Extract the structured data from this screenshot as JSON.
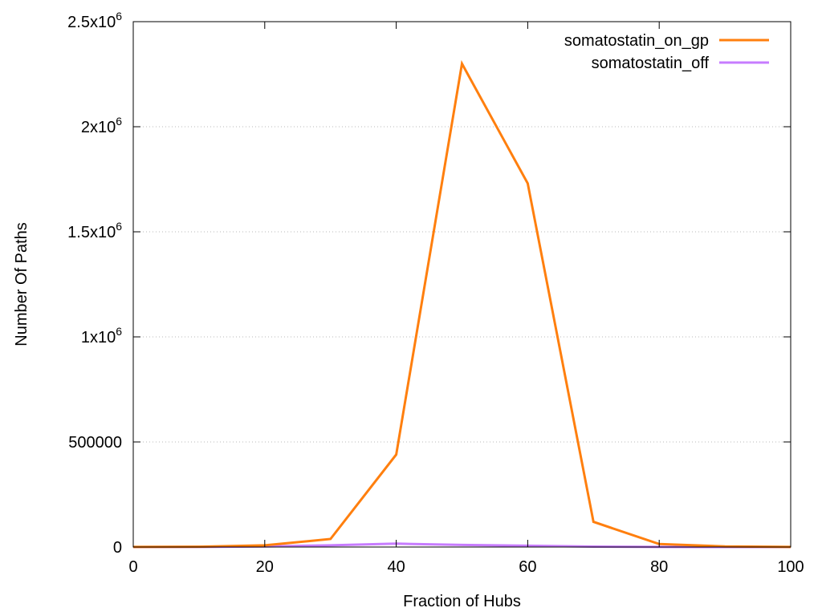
{
  "chart_data": {
    "type": "line",
    "title": "",
    "xlabel": "Fraction of Hubs",
    "ylabel": "Number Of Paths",
    "xlim": [
      0,
      100
    ],
    "ylim": [
      0,
      2500000
    ],
    "x_ticks": [
      0,
      20,
      40,
      60,
      80,
      100
    ],
    "x_tick_labels": [
      "0",
      "20",
      "40",
      "60",
      "80",
      "100"
    ],
    "y_ticks": [
      0,
      500000,
      1000000,
      1500000,
      2000000,
      2500000
    ],
    "y_tick_labels": [
      {
        "base": "0",
        "exp": ""
      },
      {
        "base": "500000",
        "exp": ""
      },
      {
        "base": "1x10",
        "exp": "6"
      },
      {
        "base": "1.5x10",
        "exp": "6"
      },
      {
        "base": "2x10",
        "exp": "6"
      },
      {
        "base": "2.5x10",
        "exp": "6"
      }
    ],
    "grid": {
      "y": true,
      "x": false,
      "style": "dotted"
    },
    "legend_position": "top-right",
    "x": [
      0,
      10,
      20,
      30,
      40,
      50,
      60,
      70,
      80,
      90,
      100
    ],
    "series": [
      {
        "name": "somatostatin_on_gp",
        "color": "#ff7f0e",
        "values": [
          500,
          1500,
          8000,
          38000,
          440000,
          2300000,
          1730000,
          120000,
          14000,
          3000,
          500
        ]
      },
      {
        "name": "somatostatin_off",
        "color": "#c77cff",
        "values": [
          100,
          500,
          2500,
          8000,
          16000,
          10000,
          6000,
          2000,
          500,
          100,
          0
        ]
      }
    ]
  }
}
